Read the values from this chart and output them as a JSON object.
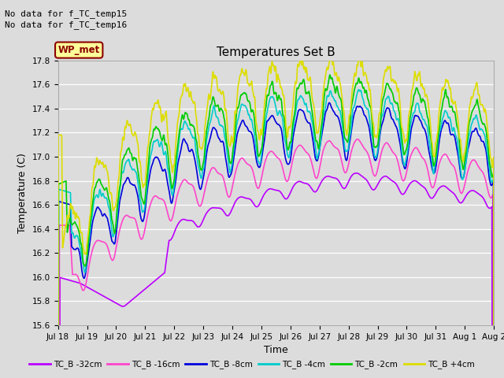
{
  "title": "Temperatures Set B",
  "xlabel": "Time",
  "ylabel": "Temperature (C)",
  "ylim": [
    15.6,
    17.8
  ],
  "annotations": [
    "No data for f_TC_temp15",
    "No data for f_TC_temp16"
  ],
  "wp_met_label": "WP_met",
  "legend_entries": [
    "TC_B -32cm",
    "TC_B -16cm",
    "TC_B -8cm",
    "TC_B -4cm",
    "TC_B -2cm",
    "TC_B +4cm"
  ],
  "line_colors": [
    "#bb00ff",
    "#ff44cc",
    "#0000dd",
    "#00cccc",
    "#00cc00",
    "#dddd00"
  ],
  "xtick_labels": [
    "Jul 18",
    "Jul 19",
    "Jul 20",
    "Jul 21",
    "Jul 22",
    "Jul 23",
    "Jul 24",
    "Jul 25",
    "Jul 26",
    "Jul 27",
    "Jul 28",
    "Jul 29",
    "Jul 30",
    "Jul 31",
    "Aug 1",
    "Aug 2"
  ],
  "bg_color": "#dcdcdc",
  "fig_bg": "#dcdcdc",
  "n_points": 1500
}
